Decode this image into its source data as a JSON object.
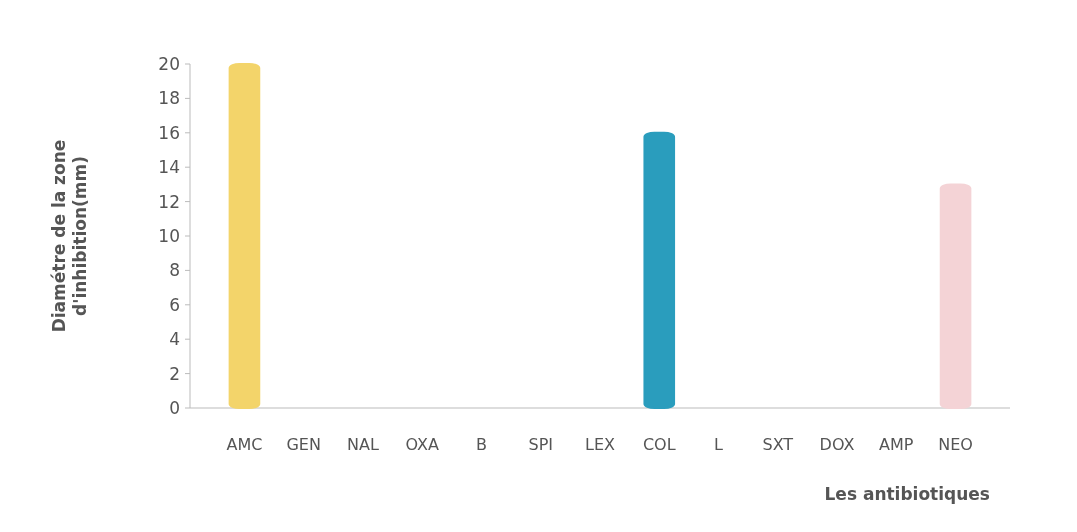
{
  "chart_data": {
    "type": "bar",
    "xlabel": "Les antibiotiques",
    "ylabel": "Diamétre de la zone d'inhibition(mm)",
    "categories": [
      "AMC",
      "GEN",
      "NAL",
      "OXA",
      "B",
      "SPI",
      "LEX",
      "COL",
      "L",
      "SXT",
      "DOX",
      "AMP",
      "NEO"
    ],
    "values": [
      20,
      0,
      0,
      0,
      0,
      0,
      0,
      16,
      0,
      0,
      0,
      0,
      13
    ],
    "colors": [
      "#f3d46a",
      "#2a9dbd",
      "#2a9dbd",
      "#2a9dbd",
      "#2a9dbd",
      "#2a9dbd",
      "#2a9dbd",
      "#2a9dbd",
      "#2a9dbd",
      "#2a9dbd",
      "#2a9dbd",
      "#2a9dbd",
      "#f4d3d6"
    ],
    "ylim": [
      0,
      20
    ],
    "yticks": [
      0,
      2,
      4,
      6,
      8,
      10,
      12,
      14,
      16,
      18,
      20
    ],
    "grid": false
  }
}
